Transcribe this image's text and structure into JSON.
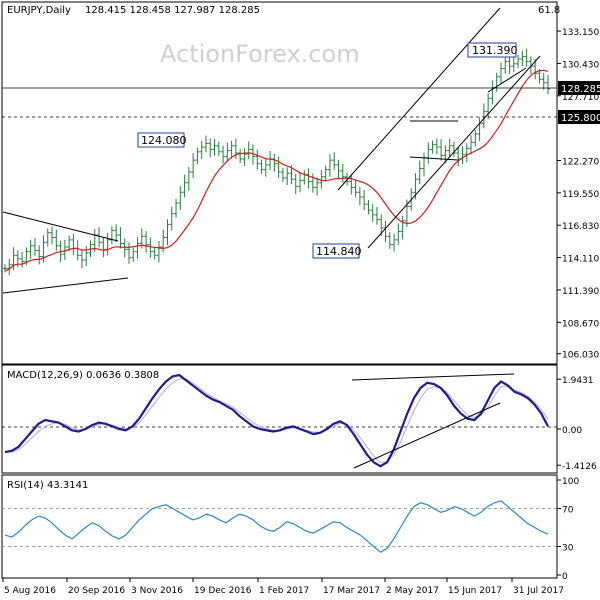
{
  "header": {
    "symbol": "EURJPY,Daily",
    "ohlc": "128.415 128.458 127.987 128.285",
    "corner_value": "61.8",
    "watermark": "ActionForex.com"
  },
  "colors": {
    "price_bar": "#2a7b3f",
    "sma": "#d11c1c",
    "channel": "#000000",
    "macd_line": "#1c1c8c",
    "macd_signal": "#c0a8c8",
    "rsi": "#2e86c1",
    "grid": "#808080",
    "current_price_bg": "#000000"
  },
  "chart_data": [
    {
      "type": "candlestick",
      "title": "EURJPY,Daily",
      "ylim": [
        105.5,
        134.5
      ],
      "y_ticks": [
        "133.150",
        "130.430",
        "127.710",
        "125.800",
        "122.270",
        "119.550",
        "116.830",
        "114.110",
        "111.390",
        "108.670",
        "106.030"
      ],
      "current_price_label": "128.285",
      "horizontal_level_label": "125.800",
      "price_annotations": [
        "131.390",
        "124.080",
        "114.840"
      ],
      "x_ticks": [
        "5 Aug 2016",
        "20 Sep 2016",
        "3 Nov 2016",
        "19 Dec 2016",
        "1 Feb 2017",
        "17 Mar 2017",
        "2 May 2017",
        "15 Jun 2017",
        "31 Jul 2017"
      ],
      "series": [
        {
          "values": [
            113.2,
            113.5,
            114.3,
            114.0,
            113.8,
            114.6,
            115.1,
            114.7,
            114.2,
            115.4,
            116.2,
            115.8,
            115.1,
            114.4,
            115.0,
            115.6,
            114.9,
            114.3,
            113.9,
            114.5,
            115.2,
            116.0,
            115.4,
            114.8,
            115.6,
            116.4,
            116.0,
            115.3,
            114.8,
            114.1,
            114.6,
            115.3,
            115.9,
            115.2,
            114.6,
            114.3,
            115.0,
            115.8,
            116.9,
            117.8,
            118.7,
            119.6,
            120.4,
            121.3,
            122.3,
            123.0,
            123.4,
            123.7,
            123.2,
            123.5,
            123.0,
            122.6,
            123.1,
            123.5,
            122.9,
            122.4,
            122.8,
            123.2,
            122.6,
            122.0,
            121.5,
            121.9,
            122.4,
            122.0,
            121.3,
            120.8,
            121.2,
            120.7,
            120.1,
            120.6,
            121.1,
            120.5,
            120.0,
            120.4,
            120.9,
            121.5,
            122.3,
            121.9,
            121.4,
            120.9,
            120.5,
            120.0,
            119.6,
            119.2,
            118.6,
            118.1,
            117.7,
            117.3,
            116.6,
            115.9,
            115.2,
            115.6,
            116.3,
            117.2,
            118.4,
            119.6,
            120.7,
            121.6,
            122.5,
            123.2,
            123.6,
            123.4,
            122.7,
            123.1,
            123.5,
            122.9,
            122.4,
            122.8,
            123.3,
            123.8,
            124.5,
            125.4,
            126.4,
            127.5,
            128.4,
            129.3,
            130.0,
            130.6,
            130.2,
            130.4,
            130.8,
            131.0,
            130.6,
            130.2,
            129.6,
            129.1,
            128.8,
            128.285
          ]
        }
      ]
    },
    {
      "type": "line",
      "title": "MACD(12,26,9) 0.0636 0.3808",
      "y_ticks": [
        "1.9431",
        "0.00",
        "-1.4126"
      ],
      "ylim": [
        -1.6,
        2.3
      ],
      "series": [
        {
          "values": [
            -0.9,
            -0.85,
            -0.7,
            -0.4,
            -0.1,
            0.2,
            0.35,
            0.3,
            0.25,
            0.1,
            -0.05,
            -0.1,
            0.0,
            0.15,
            0.25,
            0.2,
            0.1,
            0.0,
            -0.05,
            0.1,
            0.4,
            0.8,
            1.2,
            1.55,
            1.85,
            2.05,
            2.1,
            1.9,
            1.7,
            1.5,
            1.3,
            1.15,
            1.05,
            0.9,
            0.75,
            0.5,
            0.3,
            0.1,
            0.0,
            -0.05,
            -0.1,
            -0.05,
            0.05,
            0.1,
            0.0,
            -0.1,
            -0.2,
            -0.15,
            0.0,
            0.2,
            0.3,
            0.15,
            -0.2,
            -0.6,
            -1.0,
            -1.3,
            -1.45,
            -1.3,
            -0.8,
            -0.1,
            0.6,
            1.2,
            1.6,
            1.8,
            1.75,
            1.6,
            1.3,
            0.9,
            0.6,
            0.4,
            0.35,
            0.6,
            1.1,
            1.6,
            1.85,
            1.7,
            1.45,
            1.35,
            1.2,
            0.95,
            0.6,
            0.1
          ]
        },
        {
          "values": [
            -0.9,
            -0.9,
            -0.8,
            -0.6,
            -0.35,
            -0.1,
            0.1,
            0.2,
            0.25,
            0.18,
            0.05,
            -0.02,
            -0.02,
            0.08,
            0.18,
            0.2,
            0.15,
            0.06,
            0.0,
            0.05,
            0.25,
            0.55,
            0.9,
            1.25,
            1.55,
            1.8,
            1.95,
            1.95,
            1.8,
            1.6,
            1.4,
            1.25,
            1.1,
            0.98,
            0.85,
            0.65,
            0.45,
            0.25,
            0.1,
            0.0,
            -0.05,
            -0.06,
            0.0,
            0.05,
            0.02,
            -0.05,
            -0.12,
            -0.12,
            -0.05,
            0.1,
            0.22,
            0.18,
            -0.05,
            -0.35,
            -0.7,
            -1.05,
            -1.3,
            -1.3,
            -1.0,
            -0.5,
            0.1,
            0.7,
            1.2,
            1.55,
            1.65,
            1.6,
            1.42,
            1.1,
            0.8,
            0.55,
            0.45,
            0.52,
            0.85,
            1.3,
            1.65,
            1.65,
            1.52,
            1.42,
            1.28,
            1.05,
            0.75,
            0.38
          ]
        }
      ]
    },
    {
      "type": "line",
      "title": "RSI(14) 43.3141",
      "ylim": [
        0,
        100
      ],
      "y_ticks": [
        "100",
        "70",
        "30",
        "0"
      ],
      "series": [
        {
          "values": [
            42,
            40,
            45,
            52,
            58,
            62,
            60,
            55,
            48,
            42,
            38,
            44,
            50,
            55,
            52,
            46,
            41,
            38,
            42,
            50,
            58,
            64,
            70,
            72,
            74,
            70,
            66,
            62,
            58,
            60,
            64,
            62,
            58,
            55,
            60,
            64,
            62,
            58,
            52,
            48,
            46,
            50,
            56,
            54,
            50,
            46,
            44,
            48,
            52,
            56,
            55,
            50,
            46,
            42,
            36,
            30,
            24,
            28,
            38,
            50,
            62,
            72,
            76,
            74,
            70,
            66,
            68,
            72,
            70,
            66,
            62,
            66,
            72,
            76,
            78,
            72,
            66,
            60,
            54,
            50,
            46,
            43
          ]
        }
      ]
    }
  ]
}
